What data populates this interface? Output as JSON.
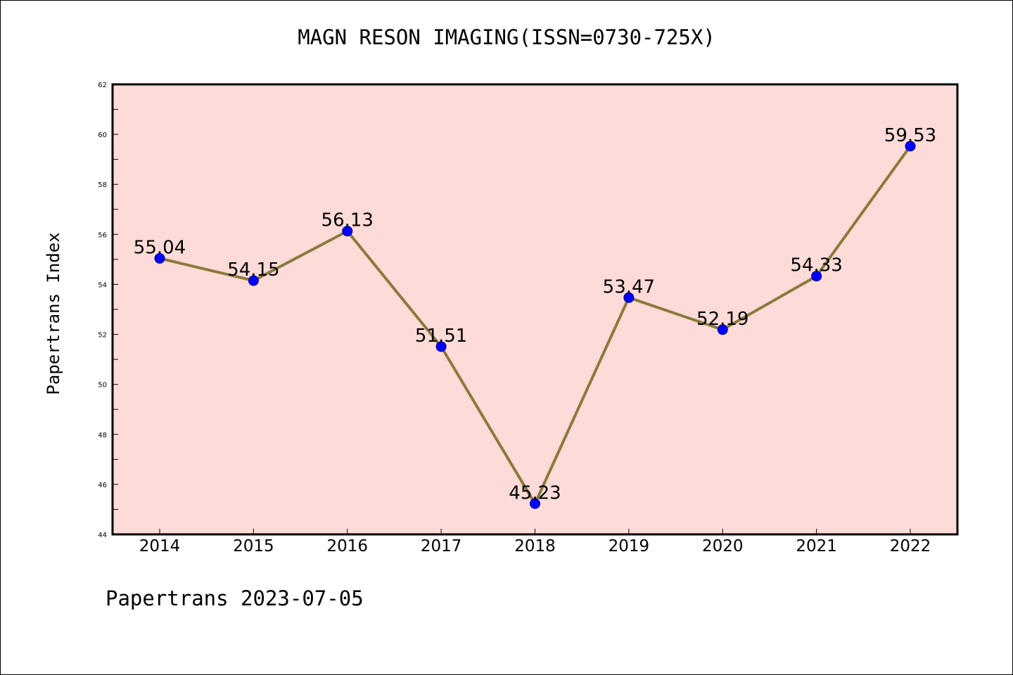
{
  "chart_data": {
    "type": "line",
    "title": "MAGN RESON IMAGING(ISSN=0730-725X)",
    "xlabel": "",
    "ylabel": "Papertrans Index",
    "x": [
      "2014",
      "2015",
      "2016",
      "2017",
      "2018",
      "2019",
      "2020",
      "2021",
      "2022"
    ],
    "series": [
      {
        "values": [
          55.04,
          54.15,
          56.13,
          51.51,
          45.23,
          53.47,
          52.19,
          54.33,
          59.53
        ],
        "labels": [
          "55.04",
          "54.15",
          "56.13",
          "51.51",
          "45.23",
          "53.47",
          "52.19",
          "54.33",
          "59.53"
        ]
      }
    ],
    "ylim": [
      44,
      62
    ],
    "yticks": [
      "44",
      "46",
      "48",
      "50",
      "52",
      "54",
      "56",
      "58",
      "60",
      "62"
    ],
    "grid": false,
    "colors": {
      "plot_background": "#fddbd8",
      "line": "#8b7a3c",
      "marker": "#0000ff",
      "axis": "#000000"
    }
  },
  "footer": {
    "note": "Papertrans 2023-07-05"
  }
}
